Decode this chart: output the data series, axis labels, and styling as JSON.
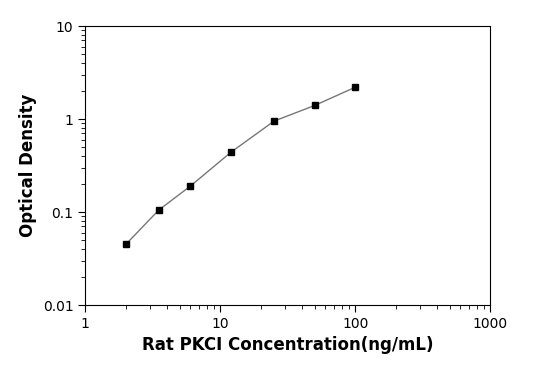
{
  "x": [
    2.0,
    3.5,
    6.0,
    12.0,
    25.0,
    50.0,
    100.0
  ],
  "y": [
    0.045,
    0.105,
    0.19,
    0.44,
    0.95,
    1.4,
    2.2
  ],
  "xlabel": "Rat PKCI Concentration(ng/mL)",
  "ylabel": "Optical Density",
  "xlim_log": [
    1,
    1000
  ],
  "ylim_log": [
    0.01,
    10
  ],
  "marker": "s",
  "marker_color": "black",
  "marker_size": 5,
  "line_color": "#777777",
  "line_width": 1.0,
  "background_color": "#ffffff",
  "xlabel_fontsize": 12,
  "ylabel_fontsize": 12,
  "tick_labelsize": 10,
  "xlabel_fontweight": "bold",
  "ylabel_fontweight": "bold"
}
